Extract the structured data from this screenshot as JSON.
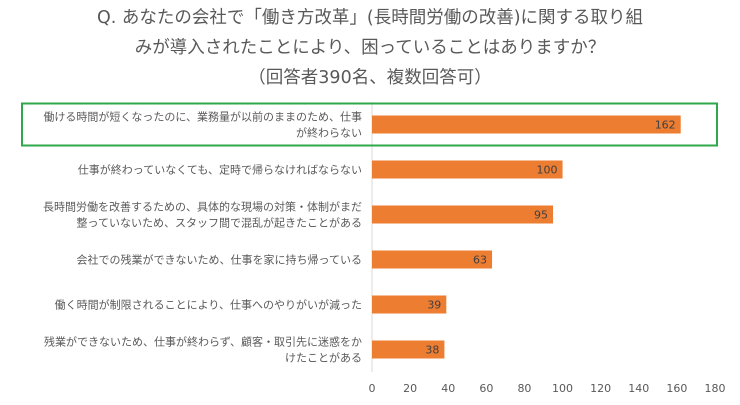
{
  "chart_data": {
    "type": "bar",
    "orientation": "horizontal",
    "title_lines": [
      "Q. あなたの会社で「働き方改革」(長時間労働の改善)に関する取り組",
      "みが導入されたことにより、困っていることはありますか？",
      "（回答者390名、複数回答可）"
    ],
    "categories": [
      [
        "働ける時間が短くなったのに、業務量が以前のままのため、仕事",
        "が終わらない"
      ],
      [
        "仕事が終わっていなくても、定時で帰らなければならない"
      ],
      [
        "長時間労働を改善するための、具体的な現場の対策・体制がまだ",
        "整っていないため、スタッフ間で混乱が起きたことがある"
      ],
      [
        "会社での残業ができないため、仕事を家に持ち帰っている"
      ],
      [
        "働く時間が制限されることにより、仕事へのやりがいが減った"
      ],
      [
        "残業ができないため、仕事が終わらず、顧客・取引先に迷惑をか",
        "けたことがある"
      ]
    ],
    "values": [
      162,
      100,
      95,
      63,
      39,
      38
    ],
    "xlim": [
      0,
      180
    ],
    "xticks": [
      0,
      20,
      40,
      60,
      80,
      100,
      120,
      140,
      160,
      180
    ],
    "bar_color": "#ED7D31",
    "highlight_index": 0,
    "highlight_color": "#2EA84A",
    "grid": false,
    "data_labels": true
  }
}
